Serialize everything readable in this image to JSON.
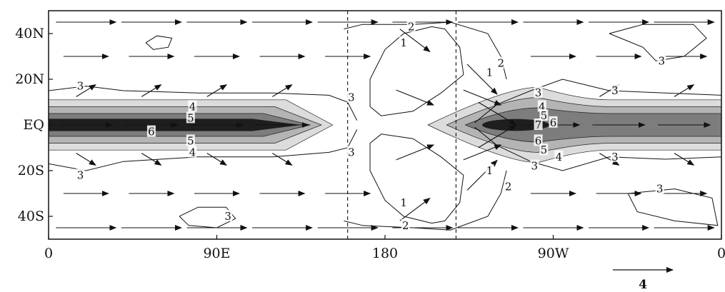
{
  "chart_data": {
    "type": "contour",
    "title": "",
    "xlabel": "",
    "ylabel": "",
    "x_ticks": [
      {
        "label": "0",
        "lon": 0
      },
      {
        "label": "90E",
        "lon": 90
      },
      {
        "label": "180",
        "lon": 180
      },
      {
        "label": "90W",
        "lon": 270
      },
      {
        "label": "0",
        "lon": 360
      }
    ],
    "y_ticks": [
      {
        "label": "40N",
        "lat": 40
      },
      {
        "label": "20N",
        "lat": 20
      },
      {
        "label": "EQ",
        "lat": 0
      },
      {
        "label": "20S",
        "lat": -20
      },
      {
        "label": "40S",
        "lat": -40
      }
    ],
    "xlim": [
      0,
      360
    ],
    "ylim": [
      -50,
      50
    ],
    "dashed_lon_lines": [
      160,
      218
    ],
    "shaded_levels": [
      4,
      5,
      6,
      7
    ],
    "contour_labels": [
      {
        "text": "3",
        "lon": 17,
        "lat": 17
      },
      {
        "text": "3",
        "lon": 162,
        "lat": 12
      },
      {
        "text": "4",
        "lon": 77,
        "lat": 8
      },
      {
        "text": "5",
        "lon": 76,
        "lat": 3
      },
      {
        "text": "6",
        "lon": 55,
        "lat": -3
      },
      {
        "text": "5",
        "lon": 76,
        "lat": -7
      },
      {
        "text": "4",
        "lon": 77,
        "lat": -12
      },
      {
        "text": "3",
        "lon": 162,
        "lat": -12
      },
      {
        "text": "3",
        "lon": 17,
        "lat": -22
      },
      {
        "text": "3",
        "lon": 96,
        "lat": -40
      },
      {
        "text": "2",
        "lon": 194,
        "lat": 43
      },
      {
        "text": "1",
        "lon": 190,
        "lat": 36
      },
      {
        "text": "1",
        "lon": 236,
        "lat": 23
      },
      {
        "text": "2",
        "lon": 242,
        "lat": 27
      },
      {
        "text": "1",
        "lon": 236,
        "lat": -20
      },
      {
        "text": "1",
        "lon": 190,
        "lat": -34
      },
      {
        "text": "2",
        "lon": 191,
        "lat": -44
      },
      {
        "text": "2",
        "lon": 246,
        "lat": -27
      },
      {
        "text": "3",
        "lon": 262,
        "lat": 14
      },
      {
        "text": "4",
        "lon": 264,
        "lat": 8
      },
      {
        "text": "5",
        "lon": 265,
        "lat": 4
      },
      {
        "text": "7",
        "lon": 262,
        "lat": 0
      },
      {
        "text": "6",
        "lon": 270,
        "lat": 1
      },
      {
        "text": "6",
        "lon": 262,
        "lat": -7
      },
      {
        "text": "5",
        "lon": 265,
        "lat": -11
      },
      {
        "text": "4",
        "lon": 273,
        "lat": -14
      },
      {
        "text": "3",
        "lon": 260,
        "lat": -18
      },
      {
        "text": "3",
        "lon": 303,
        "lat": 15
      },
      {
        "text": "3",
        "lon": 303,
        "lat": -14
      },
      {
        "text": "3",
        "lon": 328,
        "lat": 28
      },
      {
        "text": "3",
        "lon": 327,
        "lat": -28
      }
    ],
    "wind_vectors": [
      {
        "lat": 45,
        "lons": [
          20,
          55,
          90,
          125,
          160,
          200,
          235,
          270,
          305,
          340
        ],
        "u": 4,
        "v": 0
      },
      {
        "lat": 30,
        "lons": [
          20,
          55,
          90,
          125,
          160,
          270,
          305,
          340
        ],
        "u": 3,
        "v": 0
      },
      {
        "lat": 15,
        "lons": [
          20,
          55,
          90,
          125,
          300,
          340
        ],
        "u": 1.3,
        "v": 0.8
      },
      {
        "lat": 0,
        "lons": [
          20,
          55,
          90,
          125,
          270,
          305,
          340
        ],
        "u": 3.5,
        "v": 0
      },
      {
        "lat": -15,
        "lons": [
          20,
          55,
          90,
          125,
          300,
          340
        ],
        "u": 1.3,
        "v": -0.8
      },
      {
        "lat": -30,
        "lons": [
          20,
          55,
          90,
          125,
          160,
          270,
          305,
          340
        ],
        "u": 3,
        "v": 0
      },
      {
        "lat": -45,
        "lons": [
          20,
          55,
          90,
          125,
          160,
          200,
          235,
          270,
          305,
          340
        ],
        "u": 4,
        "v": 0
      },
      {
        "lat": 37,
        "lons": [
          196
        ],
        "u": 2,
        "v": -1.5
      },
      {
        "lat": 12,
        "lons": [
          196,
          232
        ],
        "u": 2.5,
        "v": -1
      },
      {
        "lat": 20,
        "lons": [
          232
        ],
        "u": 2,
        "v": -2
      },
      {
        "lat": -12,
        "lons": [
          196,
          232
        ],
        "u": 2.5,
        "v": 1
      },
      {
        "lat": -22,
        "lons": [
          232
        ],
        "u": 2,
        "v": 2
      },
      {
        "lat": -37,
        "lons": [
          196
        ],
        "u": 2,
        "v": 1.5
      },
      {
        "lat": 5,
        "lons": [
          240
        ],
        "u": 2.5,
        "v": -1.5
      },
      {
        "lat": -5,
        "lons": [
          240
        ],
        "u": 2.5,
        "v": 1.5
      }
    ],
    "reference_vector": {
      "magnitude": 4,
      "label": "4"
    }
  }
}
